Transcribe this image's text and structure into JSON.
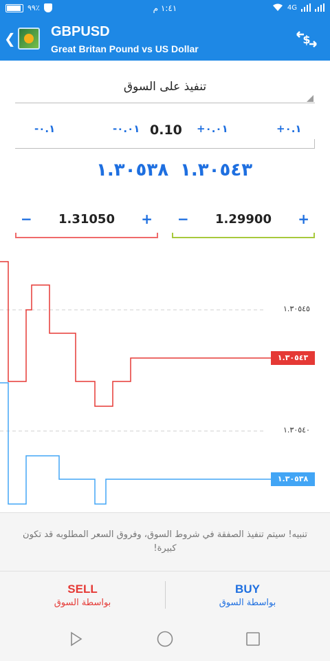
{
  "status_bar": {
    "battery_text": "٩٩٪",
    "time": "١:٤١ م",
    "network": "4G"
  },
  "header": {
    "symbol": "GBPUSD",
    "description": "Great Britan Pound vs US Dollar",
    "back_icon": "chevron-left-icon",
    "trade_icon": "currency-exchange-icon"
  },
  "order": {
    "type_label": "تنفيذ على السوق"
  },
  "volume": {
    "minus_large": "-٠.١",
    "minus_small": "-٠.٠١",
    "value": "0.10",
    "plus_small": "+٠.٠١",
    "plus_large": "+٠.١"
  },
  "prices": {
    "bid": "١.٣٠٥٣٨",
    "ask": "١.٣٠٥٤٣"
  },
  "stop_loss": {
    "value": "1.31050",
    "minus": "−",
    "plus": "+"
  },
  "take_profit": {
    "value": "1.29900",
    "minus": "−",
    "plus": "+"
  },
  "chart": {
    "level_upper": "١.٣٠٥٤٥",
    "level_lower": "١.٣٠٥٤٠",
    "ask_tag": "١.٣٠٥٤٣",
    "bid_tag": "١.٣٠٥٣٨",
    "ask_color": "#e53935",
    "bid_color": "#42a5f5"
  },
  "warning": {
    "text": "تنبيه! سيتم تنفيذ الصفقة في شروط السوق، وفروق السعر المطلوبه قد تكون كبيرة!"
  },
  "actions": {
    "sell_label": "SELL",
    "sell_sub": "بواسطة السوق",
    "buy_label": "BUY",
    "buy_sub": "بواسطة السوق"
  },
  "colors": {
    "primary": "#1e88e5",
    "sell": "#e53935",
    "buy": "#1e6fe0"
  }
}
